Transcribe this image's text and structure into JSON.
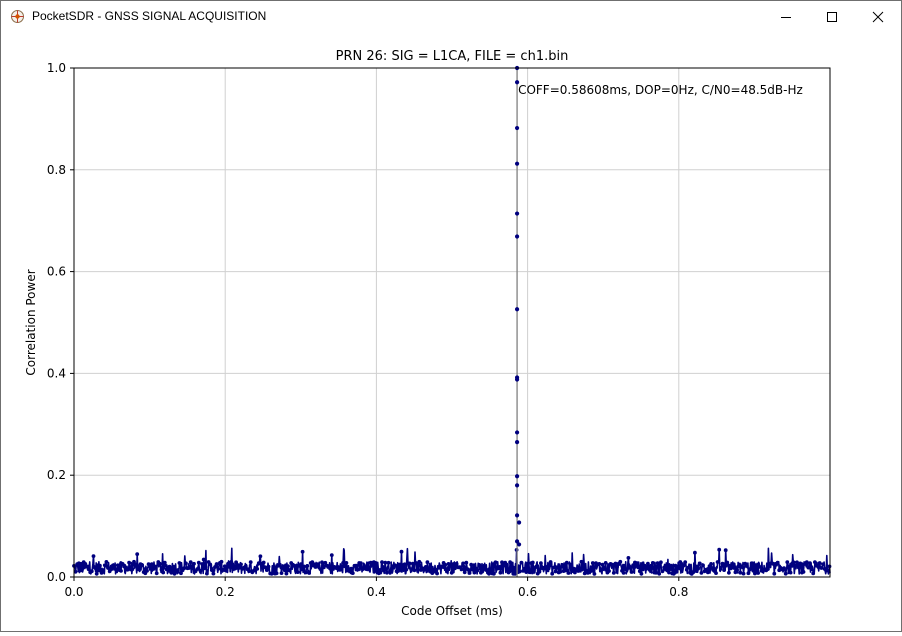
{
  "window": {
    "title": "PocketSDR - GNSS SIGNAL ACQUISITION",
    "buttons": {
      "minimize": "minimize-icon",
      "maximize": "maximize-icon",
      "close": "close-icon"
    }
  },
  "chart_data": {
    "type": "scatter",
    "title": "PRN 26: SIG = L1CA, FILE = ch1.bin",
    "xlabel": "Code Offset (ms)",
    "ylabel": "Correlation Power",
    "xlim": [
      0.0,
      1.0
    ],
    "ylim": [
      0.0,
      1.0
    ],
    "xticks": [
      0.0,
      0.2,
      0.4,
      0.6,
      0.8
    ],
    "xtick_labels": [
      "0.0",
      "0.2",
      "0.4",
      "0.6",
      "0.8"
    ],
    "yticks": [
      0.0,
      0.2,
      0.4,
      0.6,
      0.8,
      1.0
    ],
    "ytick_labels": [
      "0.0",
      "0.2",
      "0.4",
      "0.6",
      "0.8",
      "1.0"
    ],
    "grid": true,
    "annotation": "COFF=0.58608ms, DOP=0Hz, C/N0=48.5dB-Hz",
    "peak": {
      "x": 0.58608,
      "values": [
        1.0,
        0.972,
        0.882,
        0.812,
        0.714,
        0.669,
        0.526,
        0.392,
        0.388,
        0.284,
        0.265,
        0.198,
        0.18,
        0.121,
        0.107,
        0.07,
        0.064
      ]
    },
    "noise_floor": {
      "typical": 0.02,
      "max": 0.058
    },
    "colors": {
      "points": "#00007f",
      "peak_line": "#808080",
      "grid": "#d0d0d0"
    }
  }
}
